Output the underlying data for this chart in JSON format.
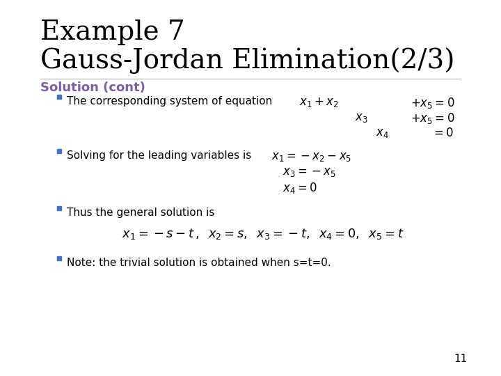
{
  "background_color": "#ffffff",
  "title_line1": "Example 7",
  "title_line2": "Gauss-Jordan Elimination(2/3)",
  "title_fontsize": 28,
  "title_color": "#000000",
  "section_title": "Solution (cont)",
  "section_color": "#7B5EA7",
  "section_fontsize": 13,
  "bullet_color": "#4472C4",
  "bullet_text_color": "#000000",
  "bullet_fontsize": 11,
  "math_fontsize": 13,
  "page_number": "11",
  "bullets": [
    "The corresponding system of equation",
    "Solving for the leading variables is",
    "Thus the general solution is",
    "Note: the trivial solution is obtained when s=t=0."
  ]
}
